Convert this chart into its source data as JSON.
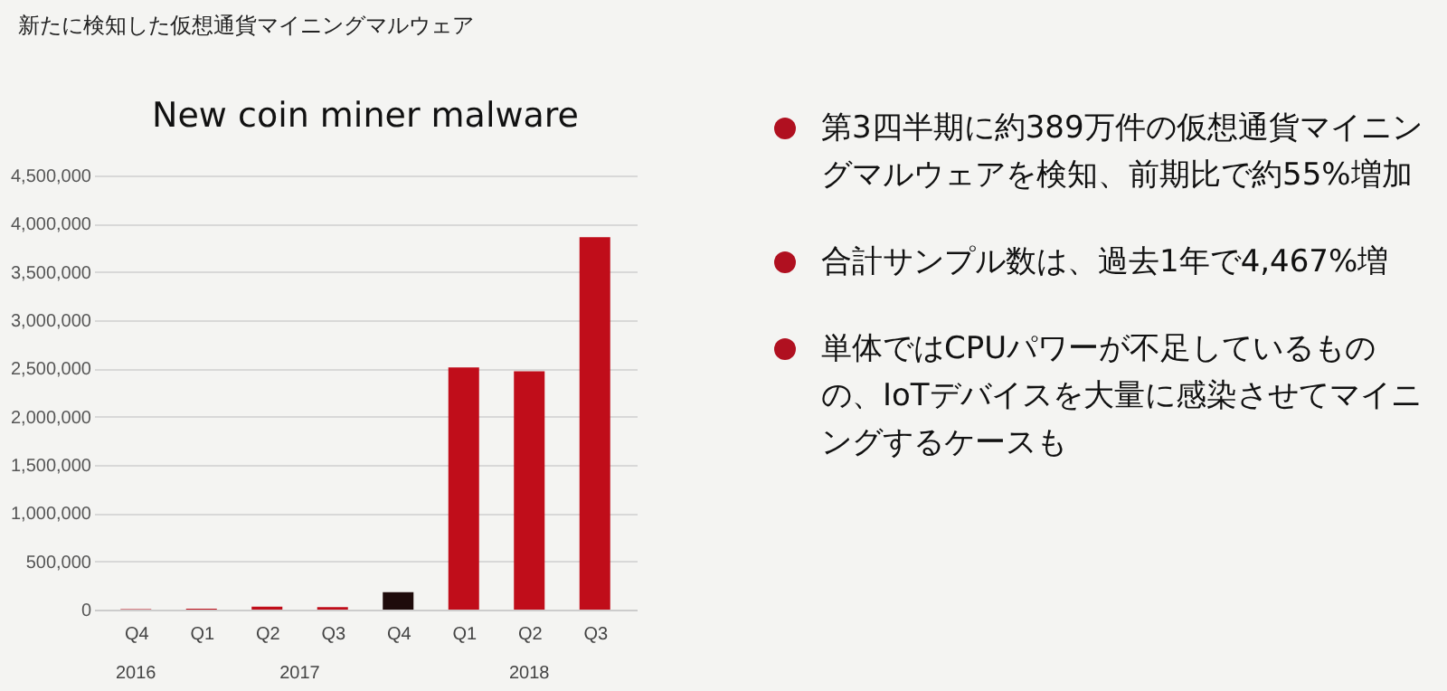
{
  "chart_data": {
    "type": "bar",
    "title": "新たに検知した仮想通貨マイニングマルウェア",
    "subtitle": "New coin miner malware",
    "categories": [
      "Q4",
      "Q1",
      "Q2",
      "Q3",
      "Q4",
      "Q1",
      "Q2",
      "Q3"
    ],
    "values": [
      5000,
      10000,
      30000,
      25000,
      180000,
      2510000,
      2470000,
      3860000
    ],
    "colors": [
      "#c00d1a",
      "#c00d1a",
      "#c00d1a",
      "#c00d1a",
      "#1e0b0b",
      "#c00d1a",
      "#c00d1a",
      "#c00d1a"
    ],
    "ylim": [
      0,
      4500000
    ],
    "yticks": [
      {
        "value": 0,
        "label": "0"
      },
      {
        "value": 500000,
        "label": "500,000"
      },
      {
        "value": 1000000,
        "label": "1,000,000"
      },
      {
        "value": 1500000,
        "label": "1,500,000"
      },
      {
        "value": 2000000,
        "label": "2,000,000"
      },
      {
        "value": 2500000,
        "label": "2,500,000"
      },
      {
        "value": 3000000,
        "label": "3,000,000"
      },
      {
        "value": 3500000,
        "label": "3,500,000"
      },
      {
        "value": 4000000,
        "label": "4,000,000"
      },
      {
        "value": 4500000,
        "label": "4,500,000"
      }
    ],
    "grid": "y",
    "annotations": [
      "2016",
      "2017",
      "2018",
      "第3四半期に約389万件の仮想通貨マイニングマルウェアを検知、前期比で約55%増加",
      "合計サンプル数は、過去1年で4,467%増",
      "単体ではCPUパワーが不足しているものの、IoTデバイスを大量に感染させてマイニングするケースも"
    ]
  }
}
